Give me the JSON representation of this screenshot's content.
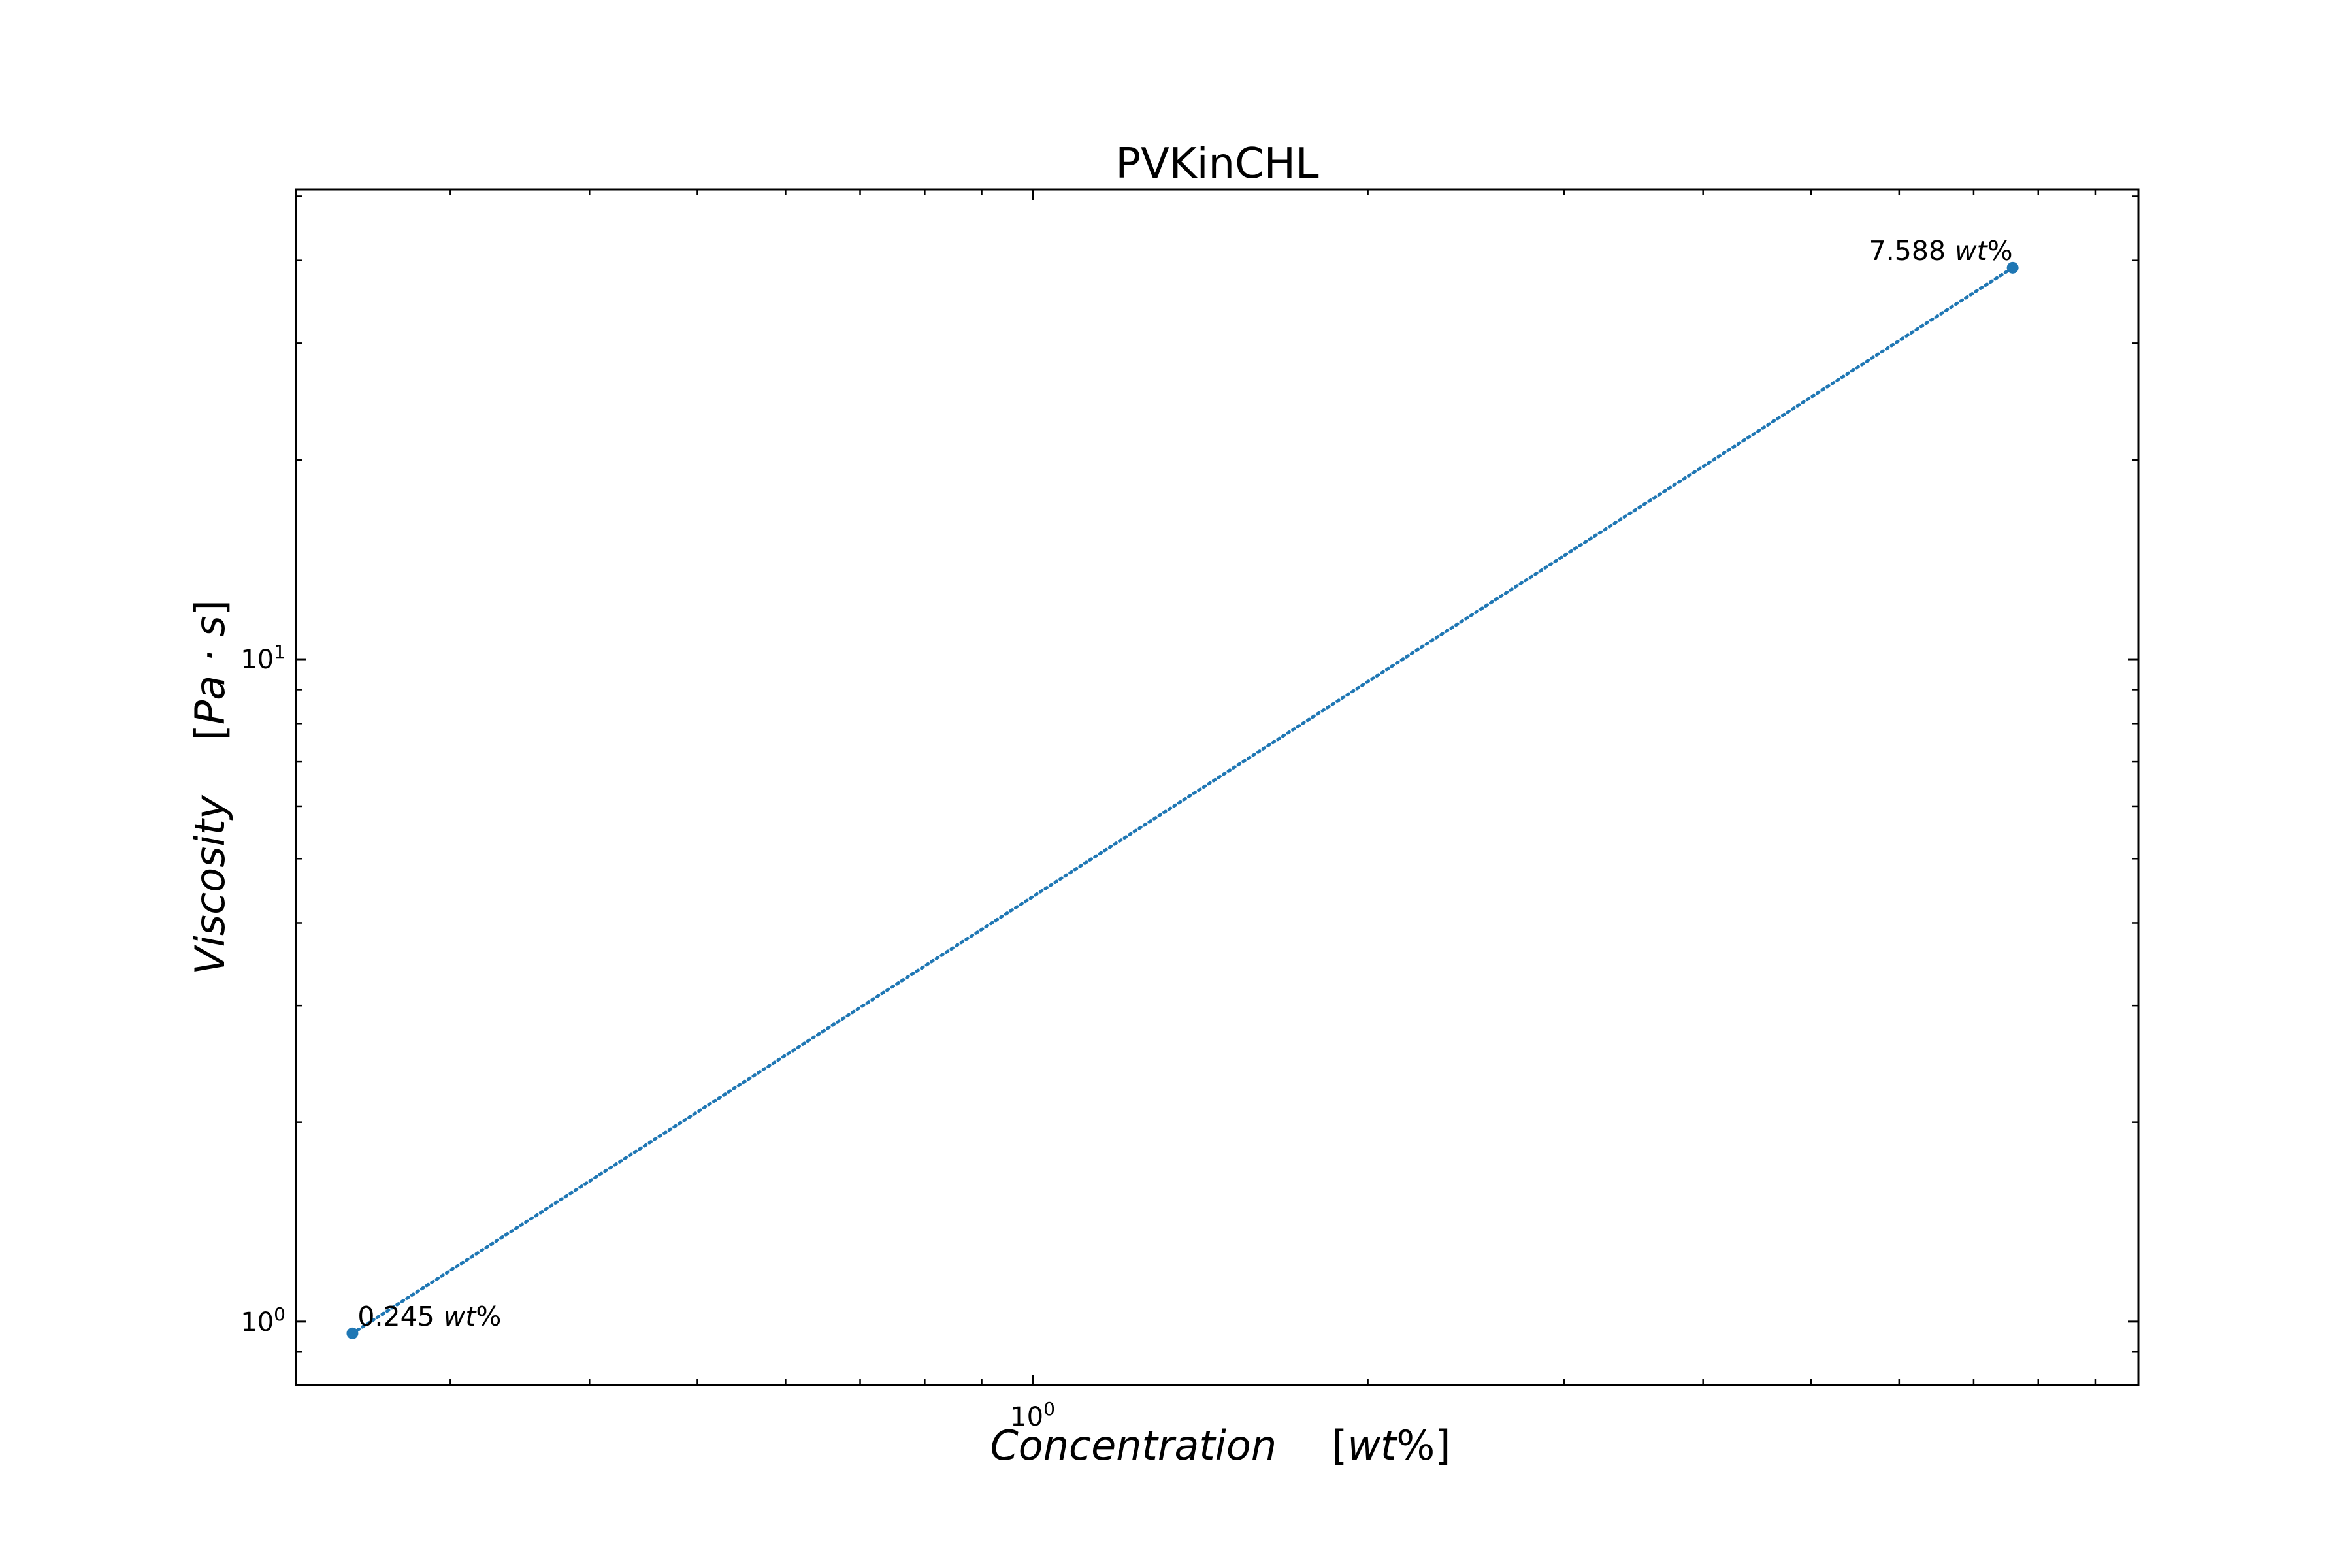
{
  "chart_data": {
    "type": "line",
    "title": "PVKinCHL",
    "xlabel": {
      "text": "Concentration",
      "unit_open": "[",
      "unit": "wt",
      "unit_close": "%]"
    },
    "ylabel": {
      "text": "Viscosity",
      "unit_open": "[",
      "unit": "Pa · s",
      "unit_close": "]"
    },
    "x_scale": "log",
    "y_scale": "log",
    "xlim": [
      0.218,
      9.84
    ],
    "ylim": [
      0.802,
      51.2
    ],
    "grid": false,
    "series": [
      {
        "color": "#1f77b4",
        "line_style": "dotted",
        "x": [
          0.245,
          7.588
        ],
        "y": [
          0.96,
          39.0
        ]
      }
    ],
    "annotations": [
      {
        "x": 0.245,
        "y": 0.96,
        "value": "0.245",
        "unit": "wt",
        "suffix": "%",
        "align": "start"
      },
      {
        "x": 7.588,
        "y": 39.0,
        "value": "7.588",
        "unit": "wt",
        "suffix": "%",
        "align": "end"
      }
    ],
    "x_ticks": [
      {
        "value": 1,
        "base": "10",
        "exp": "0"
      }
    ],
    "y_ticks": [
      {
        "value": 1,
        "base": "10",
        "exp": "0"
      },
      {
        "value": 10,
        "base": "10",
        "exp": "1"
      }
    ]
  }
}
